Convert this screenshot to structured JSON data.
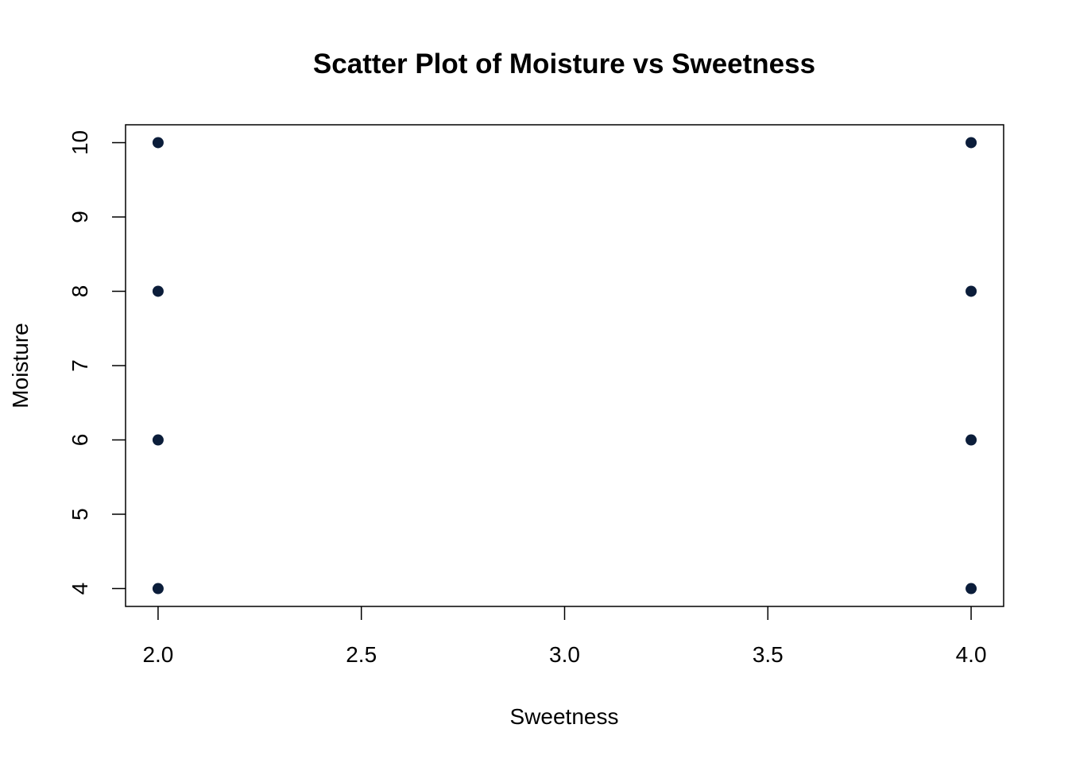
{
  "chart_data": {
    "type": "scatter",
    "title": "Scatter Plot of Moisture vs Sweetness",
    "x_label": "Sweetness",
    "y_label": "Moisture",
    "x": [
      2,
      2,
      2,
      2,
      4,
      4,
      4,
      4
    ],
    "values": [
      4,
      6,
      8,
      10,
      4,
      6,
      8,
      10
    ],
    "color": "#0b1d3a",
    "xlim": [
      1.92,
      4.08
    ],
    "ylim": [
      3.76,
      10.24
    ],
    "xticks": [
      {
        "value": 2,
        "label": "2.0"
      },
      {
        "value": 2.5,
        "label": "2.5"
      },
      {
        "value": 3,
        "label": "3.0"
      },
      {
        "value": 3.5,
        "label": "3.5"
      },
      {
        "value": 4,
        "label": "4.0"
      }
    ],
    "yticks": [
      4,
      5,
      6,
      7,
      8,
      9,
      10
    ]
  }
}
